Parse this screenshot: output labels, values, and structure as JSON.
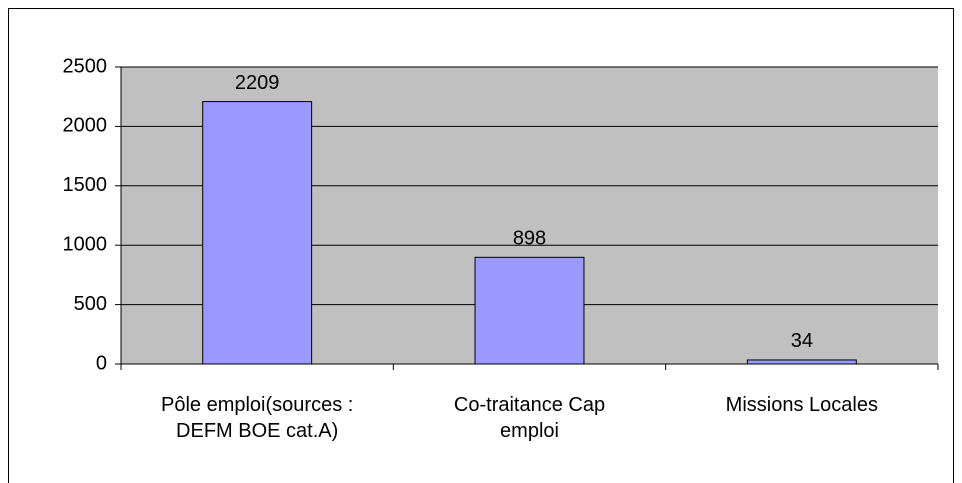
{
  "chart_data": {
    "type": "bar",
    "categories": [
      "Pôle emploi(sources : DEFM BOE cat.A)",
      "Co-traitance Cap emploi",
      "Missions Locales"
    ],
    "values": [
      2209,
      898,
      34
    ],
    "color": "#9999ff",
    "ylim": [
      0,
      2500
    ],
    "yticks": [
      0,
      500,
      1000,
      1500,
      2000,
      2500
    ],
    "grid": true
  }
}
